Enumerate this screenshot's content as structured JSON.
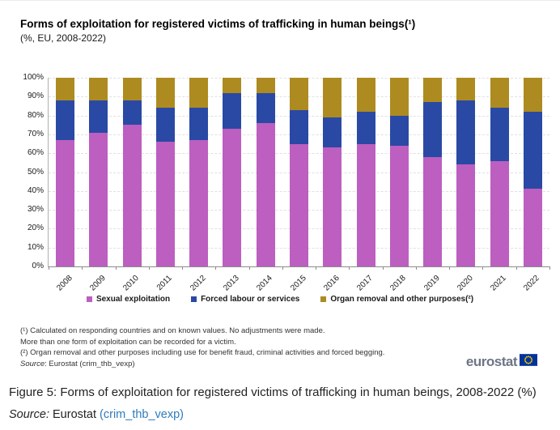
{
  "figure": {
    "title": "Forms of exploitation for registered victims of trafficking in human beings(¹)",
    "subtitle": "(%, EU, 2008-2022)",
    "footnotes": [
      "(¹) Calculated on responding countries and on known values. No adjustments were made.",
      "More than one form of exploitation can be recorded for a victim.",
      "(²) Organ removal and other purposes including use for benefit fraud, criminal activities and forced begging."
    ],
    "source_italic": "Source",
    "source_rest": ": Eurostat (crim_thb_vexp)",
    "logo_text": "eurostat",
    "logo_flag_color": "#003399",
    "logo_star_color": "#ffcc00"
  },
  "chart_data": {
    "type": "bar",
    "stacked": true,
    "title": "Forms of exploitation for registered victims of trafficking in human beings(¹)",
    "subtitle": "(%, EU, 2008-2022)",
    "categories": [
      "2008",
      "2009",
      "2010",
      "2011",
      "2012",
      "2013",
      "2014",
      "2015",
      "2016",
      "2017",
      "2018",
      "2019",
      "2020",
      "2021",
      "2022"
    ],
    "series": [
      {
        "name": "Sexual exploitation",
        "color": "#bc5fc0",
        "values": [
          67,
          71,
          75,
          66,
          67,
          73,
          76,
          65,
          63,
          65,
          64,
          58,
          54,
          56,
          41
        ]
      },
      {
        "name": "Forced labour or services",
        "color": "#2a49a5",
        "values": [
          21,
          17,
          13,
          18,
          17,
          19,
          16,
          18,
          16,
          17,
          16,
          29,
          34,
          28,
          41
        ]
      },
      {
        "name": "Organ removal and other purposes(²)",
        "color": "#ad8b20",
        "values": [
          12,
          12,
          12,
          16,
          16,
          8,
          8,
          17,
          21,
          18,
          20,
          13,
          12,
          16,
          18
        ]
      }
    ],
    "yticks": [
      "0%",
      "10%",
      "20%",
      "30%",
      "40%",
      "50%",
      "60%",
      "70%",
      "80%",
      "90%",
      "100%"
    ],
    "ylim": [
      0,
      100
    ],
    "ylabel": "%",
    "xlabel": "",
    "grid": "horizontal-dashed",
    "legend_position": "bottom"
  },
  "caption": {
    "text": "Figure 5: Forms of exploitation for registered victims of trafficking in human beings, 2008-2022 (%)",
    "source_italic": "Source:",
    "source_mid": " Eurostat ",
    "source_link": "(crim_thb_vexp)",
    "link_color": "#2e7bbc"
  }
}
